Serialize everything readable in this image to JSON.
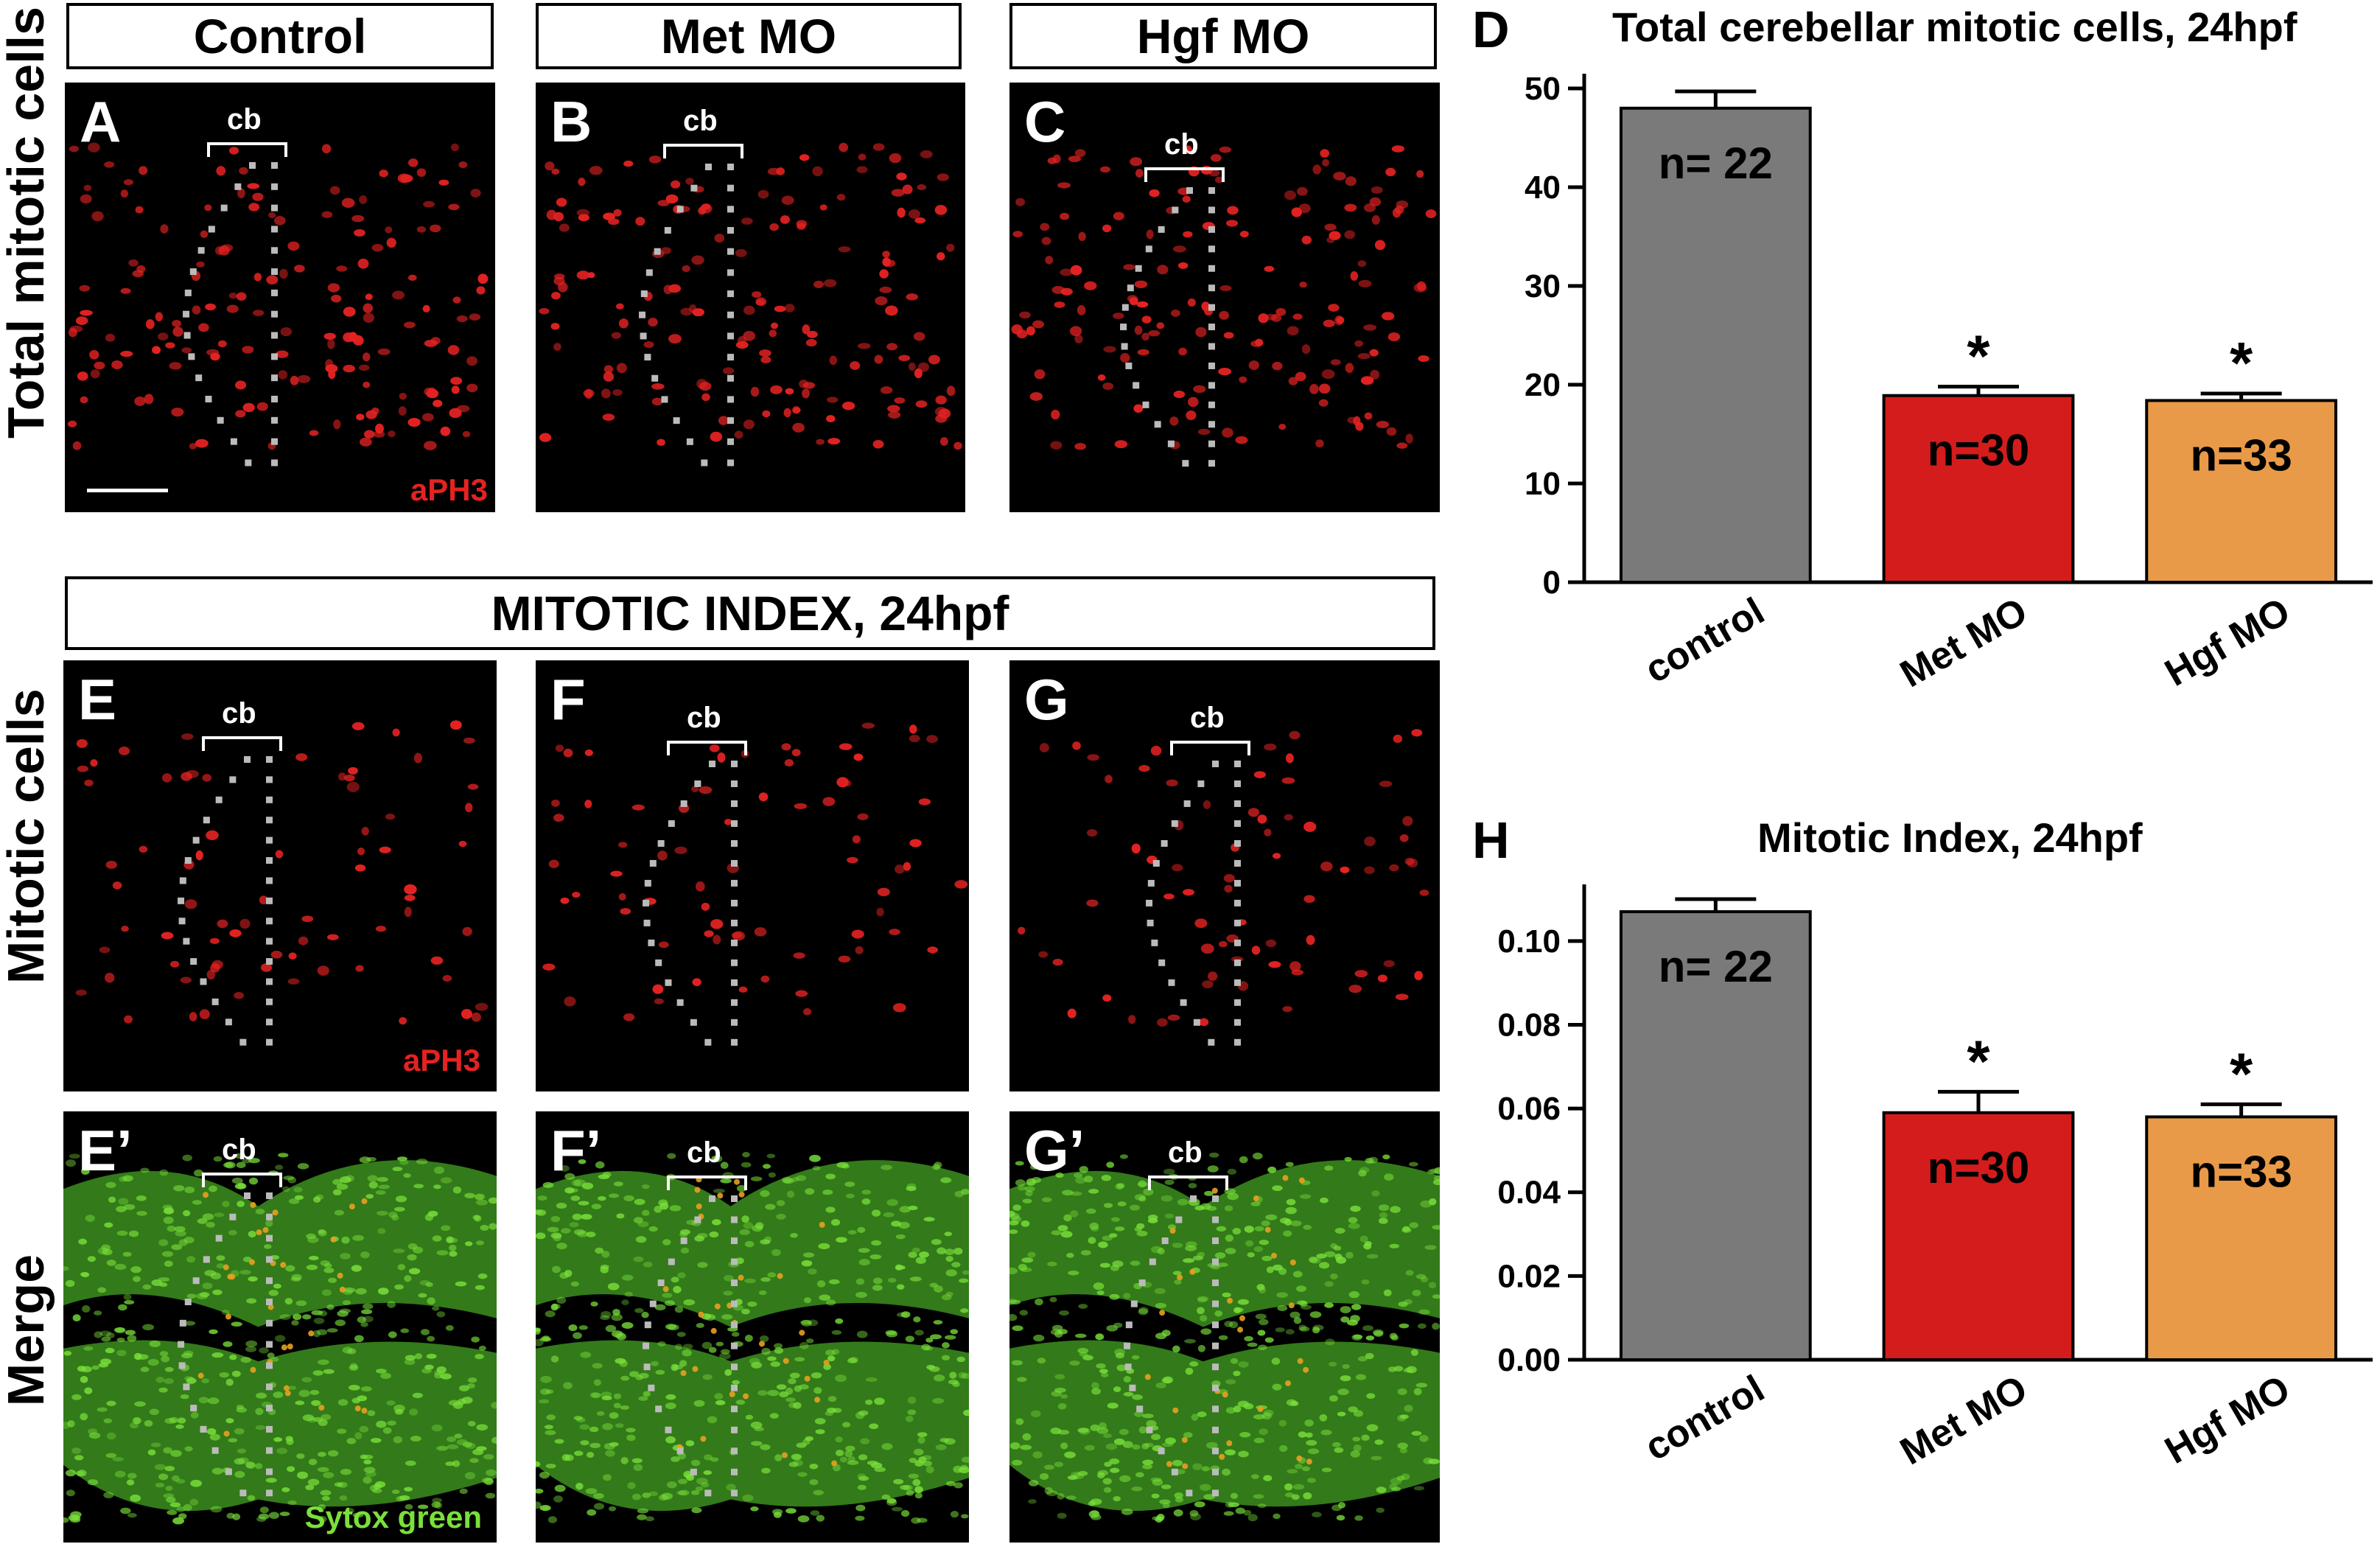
{
  "column_headers": [
    "Control",
    "Met MO",
    "Hgf MO"
  ],
  "section_header": "MITOTIC INDEX, 24hpf",
  "row_labels": {
    "total": "Total mitotic cells",
    "mitotic": "Mitotic cells",
    "merge": "Merge"
  },
  "panels": {
    "A": "A",
    "B": "B",
    "C": "C",
    "E": "E",
    "F": "F",
    "G": "G",
    "Ep": "E’",
    "Fp": "F’",
    "Gp": "G’"
  },
  "region_label": "cb",
  "stain_labels": {
    "aph3": "aPH3",
    "sytox": "Sytox green"
  },
  "colors": {
    "control": "#7a7a7a",
    "met_mo": "#d41c1c",
    "hgf_mo": "#e99a48",
    "aph3": "#e52222",
    "sytox": "#7ae03a"
  },
  "chart_data": [
    {
      "id": "D",
      "panel_label": "D",
      "type": "bar",
      "title": "Total cerebellar mitotic cells, 24hpf",
      "categories": [
        "control",
        "Met MO",
        "Hgf MO"
      ],
      "values": [
        48,
        18.9,
        18.4
      ],
      "errors": [
        1.7,
        0.9,
        0.7
      ],
      "n_labels": [
        "n= 22",
        "n=30",
        "n=33"
      ],
      "significance": [
        "",
        "*",
        "*"
      ],
      "ylim": [
        0,
        50
      ],
      "yticks": [
        "0",
        "10",
        "20",
        "30",
        "40",
        "50"
      ]
    },
    {
      "id": "H",
      "panel_label": "H",
      "type": "bar",
      "title": "Mitotic Index, 24hpf",
      "categories": [
        "control",
        "Met MO",
        "Hgf MO"
      ],
      "values": [
        0.107,
        0.059,
        0.058
      ],
      "errors": [
        0.003,
        0.005,
        0.003
      ],
      "n_labels": [
        "n= 22",
        "n=30",
        "n=33"
      ],
      "significance": [
        "",
        "*",
        "*"
      ],
      "ylim": [
        0,
        0.11
      ],
      "yticks": [
        "0.00",
        "0.02",
        "0.04",
        "0.06",
        "0.08",
        "0.10"
      ]
    }
  ]
}
